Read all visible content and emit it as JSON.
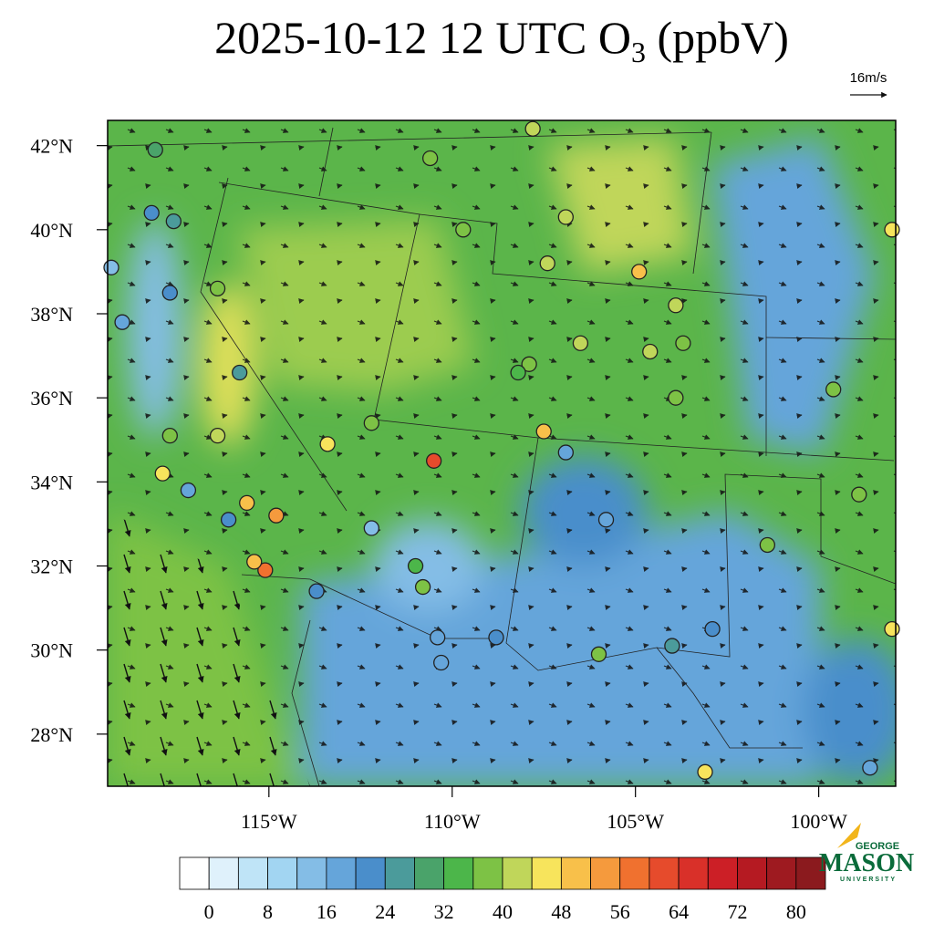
{
  "title": "2025-10-12 12 UTC O",
  "title_subscript": "3",
  "title_suffix": " (ppbV)",
  "wind_reference": {
    "label": "16m/s"
  },
  "map": {
    "xlim": [
      -119.4,
      -97.9
    ],
    "ylim": [
      26.76,
      42.6
    ],
    "xticks": [
      {
        "value": -115,
        "label": "115°W"
      },
      {
        "value": -110,
        "label": "110°W"
      },
      {
        "value": -105,
        "label": "105°W"
      },
      {
        "value": -100,
        "label": "100°W"
      }
    ],
    "yticks": [
      {
        "value": 28,
        "label": "28°N"
      },
      {
        "value": 30,
        "label": "30°N"
      },
      {
        "value": 32,
        "label": "32°N"
      },
      {
        "value": 34,
        "label": "34°N"
      },
      {
        "value": 36,
        "label": "36°N"
      },
      {
        "value": 38,
        "label": "38°N"
      },
      {
        "value": 40,
        "label": "40°N"
      },
      {
        "value": 42,
        "label": "42°N"
      }
    ]
  },
  "stations": [
    {
      "lon": -118.1,
      "lat": 41.9,
      "value": 30
    },
    {
      "lon": -118.2,
      "lat": 40.4,
      "value": 22
    },
    {
      "lon": -117.6,
      "lat": 40.2,
      "value": 24
    },
    {
      "lon": -119.3,
      "lat": 39.1,
      "value": 14
    },
    {
      "lon": -119.0,
      "lat": 37.8,
      "value": 18
    },
    {
      "lon": -117.7,
      "lat": 38.5,
      "value": 20
    },
    {
      "lon": -116.4,
      "lat": 38.6,
      "value": 36
    },
    {
      "lon": -115.8,
      "lat": 36.6,
      "value": 24
    },
    {
      "lon": -116.4,
      "lat": 35.1,
      "value": 40
    },
    {
      "lon": -117.7,
      "lat": 35.1,
      "value": 38
    },
    {
      "lon": -117.9,
      "lat": 34.2,
      "value": 44
    },
    {
      "lon": -117.2,
      "lat": 33.8,
      "value": 18
    },
    {
      "lon": -115.6,
      "lat": 33.5,
      "value": 48
    },
    {
      "lon": -114.8,
      "lat": 33.2,
      "value": 52
    },
    {
      "lon": -115.1,
      "lat": 31.9,
      "value": 56
    },
    {
      "lon": -115.4,
      "lat": 32.1,
      "value": 50
    },
    {
      "lon": -116.1,
      "lat": 33.1,
      "value": 20
    },
    {
      "lon": -110.5,
      "lat": 34.5,
      "value": 60
    },
    {
      "lon": -107.5,
      "lat": 35.2,
      "value": 50
    },
    {
      "lon": -106.9,
      "lat": 34.7,
      "value": 16
    },
    {
      "lon": -111.0,
      "lat": 32.0,
      "value": 34
    },
    {
      "lon": -110.8,
      "lat": 31.5,
      "value": 36
    },
    {
      "lon": -110.4,
      "lat": 30.3,
      "value": 18
    },
    {
      "lon": -106.0,
      "lat": 29.9,
      "value": 36
    },
    {
      "lon": -105.8,
      "lat": 33.1,
      "value": 18
    },
    {
      "lon": -107.9,
      "lat": 36.8,
      "value": 36
    },
    {
      "lon": -108.2,
      "lat": 36.6,
      "value": 32
    },
    {
      "lon": -104.9,
      "lat": 39.0,
      "value": 48
    },
    {
      "lon": -103.9,
      "lat": 38.2,
      "value": 40
    },
    {
      "lon": -103.7,
      "lat": 37.3,
      "value": 38
    },
    {
      "lon": -104.6,
      "lat": 37.1,
      "value": 40
    },
    {
      "lon": -103.9,
      "lat": 36.0,
      "value": 38
    },
    {
      "lon": -99.6,
      "lat": 36.2,
      "value": 38
    },
    {
      "lon": -98.9,
      "lat": 33.7,
      "value": 38
    },
    {
      "lon": -101.4,
      "lat": 32.5,
      "value": 38
    },
    {
      "lon": -98.0,
      "lat": 40.0,
      "value": 44
    },
    {
      "lon": -98.0,
      "lat": 30.5,
      "value": 44
    },
    {
      "lon": -103.1,
      "lat": 27.1,
      "value": 46
    },
    {
      "lon": -98.6,
      "lat": 27.2,
      "value": 18
    },
    {
      "lon": -107.8,
      "lat": 42.4,
      "value": 40
    },
    {
      "lon": -106.9,
      "lat": 40.3,
      "value": 40
    },
    {
      "lon": -109.7,
      "lat": 40.0,
      "value": 36
    },
    {
      "lon": -110.6,
      "lat": 41.7,
      "value": 38
    },
    {
      "lon": -107.4,
      "lat": 39.2,
      "value": 40
    },
    {
      "lon": -106.5,
      "lat": 37.3,
      "value": 40
    },
    {
      "lon": -112.2,
      "lat": 35.4,
      "value": 38
    },
    {
      "lon": -113.4,
      "lat": 34.9,
      "value": 46
    },
    {
      "lon": -112.2,
      "lat": 32.9,
      "value": 14
    },
    {
      "lon": -113.7,
      "lat": 31.4,
      "value": 20
    },
    {
      "lon": -110.3,
      "lat": 29.7,
      "value": 18
    },
    {
      "lon": -108.8,
      "lat": 30.3,
      "value": 22
    },
    {
      "lon": -102.9,
      "lat": 30.5,
      "value": 20
    },
    {
      "lon": -104.0,
      "lat": 30.1,
      "value": 24
    }
  ],
  "colorbar": {
    "lim": [
      -4,
      84
    ],
    "colors": [
      "#ffffff",
      "#dff1fb",
      "#bfe4f7",
      "#a2d5f2",
      "#84bde6",
      "#65a5da",
      "#4a8ecb",
      "#4b9b9b",
      "#4aa36a",
      "#4cb64a",
      "#7dc245",
      "#c0d65a",
      "#f7e45c",
      "#f8c04a",
      "#f59a3d",
      "#f0712f",
      "#e64b2c",
      "#d93029",
      "#cc1f26",
      "#b51a22",
      "#9e1a20",
      "#8b1a1e"
    ],
    "ticks": [
      0,
      8,
      16,
      24,
      32,
      40,
      48,
      56,
      64,
      72,
      80
    ]
  },
  "logo": {
    "top": "GEORGE",
    "main": "MASON",
    "bottom": "UNIVERSITY"
  }
}
